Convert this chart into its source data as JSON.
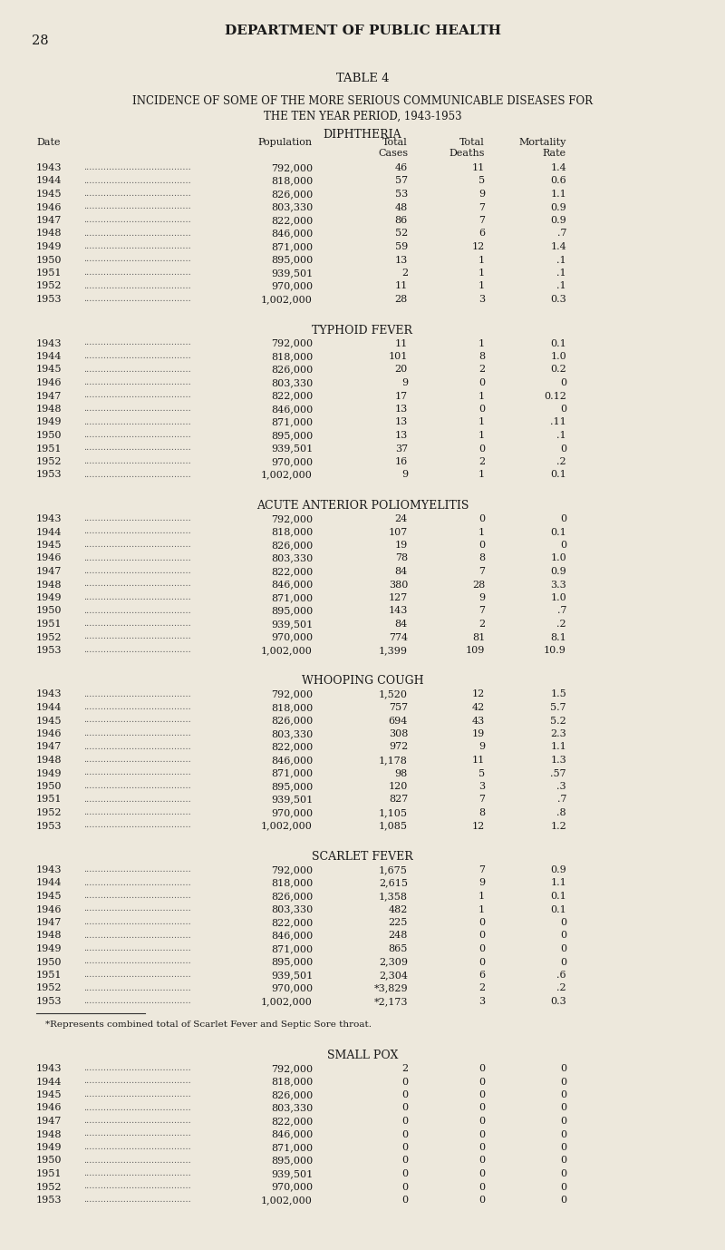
{
  "page_num": "28",
  "page_header": "DEPARTMENT OF PUBLIC HEALTH",
  "table_title": "TABLE 4",
  "table_subtitle_1": "INCIDENCE OF SOME OF THE MORE SERIOUS COMMUNICABLE DISEASES FOR",
  "table_subtitle_2": "THE TEN YEAR PERIOD, 1943-1953",
  "background_color": "#ede8dc",
  "text_color": "#1a1a1a",
  "sections": [
    {
      "title": "DIPHTHERIA",
      "has_col_headers": true,
      "rows": [
        [
          "1943",
          "792,000",
          "46",
          "11",
          "1.4"
        ],
        [
          "1944",
          "818,000",
          "57",
          "5",
          "0.6"
        ],
        [
          "1945",
          "826,000",
          "53",
          "9",
          "1.1"
        ],
        [
          "1946",
          "803,330",
          "48",
          "7",
          "0.9"
        ],
        [
          "1947",
          "822,000",
          "86",
          "7",
          "0.9"
        ],
        [
          "1948",
          "846,000",
          "52",
          "6",
          ".7"
        ],
        [
          "1949",
          "871,000",
          "59",
          "12",
          "1.4"
        ],
        [
          "1950",
          "895,000",
          "13",
          "1",
          ".1"
        ],
        [
          "1951",
          "939,501",
          "2",
          "1",
          ".1"
        ],
        [
          "1952",
          "970,000",
          "11",
          "1",
          ".1"
        ],
        [
          "1953",
          "1,002,000",
          "28",
          "3",
          "0.3"
        ]
      ],
      "footnote": null
    },
    {
      "title": "TYPHOID FEVER",
      "has_col_headers": false,
      "rows": [
        [
          "1943",
          "792,000",
          "11",
          "1",
          "0.1"
        ],
        [
          "1944",
          "818,000",
          "101",
          "8",
          "1.0"
        ],
        [
          "1945",
          "826,000",
          "20",
          "2",
          "0.2"
        ],
        [
          "1946",
          "803,330",
          "9",
          "0",
          "0"
        ],
        [
          "1947",
          "822,000",
          "17",
          "1",
          "0.12"
        ],
        [
          "1948",
          "846,000",
          "13",
          "0",
          "0"
        ],
        [
          "1949",
          "871,000",
          "13",
          "1",
          ".11"
        ],
        [
          "1950",
          "895,000",
          "13",
          "1",
          ".1"
        ],
        [
          "1951",
          "939,501",
          "37",
          "0",
          "0"
        ],
        [
          "1952",
          "970,000",
          "16",
          "2",
          ".2"
        ],
        [
          "1953",
          "1,002,000",
          "9",
          "1",
          "0.1"
        ]
      ],
      "footnote": null
    },
    {
      "title": "ACUTE ANTERIOR POLIOMYELITIS",
      "has_col_headers": false,
      "rows": [
        [
          "1943",
          "792,000",
          "24",
          "0",
          "0"
        ],
        [
          "1944",
          "818,000",
          "107",
          "1",
          "0.1"
        ],
        [
          "1945",
          "826,000",
          "19",
          "0",
          "0"
        ],
        [
          "1946",
          "803,330",
          "78",
          "8",
          "1.0"
        ],
        [
          "1947",
          "822,000",
          "84",
          "7",
          "0.9"
        ],
        [
          "1948",
          "846,000",
          "380",
          "28",
          "3.3"
        ],
        [
          "1949",
          "871,000",
          "127",
          "9",
          "1.0"
        ],
        [
          "1950",
          "895,000",
          "143",
          "7",
          ".7"
        ],
        [
          "1951",
          "939,501",
          "84",
          "2",
          ".2"
        ],
        [
          "1952",
          "970,000",
          "774",
          "81",
          "8.1"
        ],
        [
          "1953",
          "1,002,000",
          "1,399",
          "109",
          "10.9"
        ]
      ],
      "footnote": null
    },
    {
      "title": "WHOOPING COUGH",
      "has_col_headers": false,
      "rows": [
        [
          "1943",
          "792,000",
          "1,520",
          "12",
          "1.5"
        ],
        [
          "1944",
          "818,000",
          "757",
          "42",
          "5.7"
        ],
        [
          "1945",
          "826,000",
          "694",
          "43",
          "5.2"
        ],
        [
          "1946",
          "803,330",
          "308",
          "19",
          "2.3"
        ],
        [
          "1947",
          "822,000",
          "972",
          "9",
          "1.1"
        ],
        [
          "1948",
          "846,000",
          "1,178",
          "11",
          "1.3"
        ],
        [
          "1949",
          "871,000",
          "98",
          "5",
          ".57"
        ],
        [
          "1950",
          "895,000",
          "120",
          "3",
          ".3"
        ],
        [
          "1951",
          "939,501",
          "827",
          "7",
          ".7"
        ],
        [
          "1952",
          "970,000",
          "1,105",
          "8",
          ".8"
        ],
        [
          "1953",
          "1,002,000",
          "1,085",
          "12",
          "1.2"
        ]
      ],
      "footnote": null
    },
    {
      "title": "SCARLET FEVER",
      "has_col_headers": false,
      "rows": [
        [
          "1943",
          "792,000",
          "1,675",
          "7",
          "0.9"
        ],
        [
          "1944",
          "818,000",
          "2,615",
          "9",
          "1.1"
        ],
        [
          "1945",
          "826,000",
          "1,358",
          "1",
          "0.1"
        ],
        [
          "1946",
          "803,330",
          "482",
          "1",
          "0.1"
        ],
        [
          "1947",
          "822,000",
          "225",
          "0",
          "0"
        ],
        [
          "1948",
          "846,000",
          "248",
          "0",
          "0"
        ],
        [
          "1949",
          "871,000",
          "865",
          "0",
          "0"
        ],
        [
          "1950",
          "895,000",
          "2,309",
          "0",
          "0"
        ],
        [
          "1951",
          "939,501",
          "2,304",
          "6",
          ".6"
        ],
        [
          "1952",
          "970,000",
          "*3,829",
          "2",
          ".2"
        ],
        [
          "1953",
          "1,002,000",
          "*2,173",
          "3",
          "0.3"
        ]
      ],
      "footnote": "*Represents combined total of Scarlet Fever and Septic Sore throat."
    },
    {
      "title": "SMALL POX",
      "has_col_headers": false,
      "rows": [
        [
          "1943",
          "792,000",
          "2",
          "0",
          "0"
        ],
        [
          "1944",
          "818,000",
          "0",
          "0",
          "0"
        ],
        [
          "1945",
          "826,000",
          "0",
          "0",
          "0"
        ],
        [
          "1946",
          "803,330",
          "0",
          "0",
          "0"
        ],
        [
          "1947",
          "822,000",
          "0",
          "0",
          "0"
        ],
        [
          "1948",
          "846,000",
          "0",
          "0",
          "0"
        ],
        [
          "1949",
          "871,000",
          "0",
          "0",
          "0"
        ],
        [
          "1950",
          "895,000",
          "0",
          "0",
          "0"
        ],
        [
          "1951",
          "939,501",
          "0",
          "0",
          "0"
        ],
        [
          "1952",
          "970,000",
          "0",
          "0",
          "0"
        ],
        [
          "1953",
          "1,002,000",
          "0",
          "0",
          "0"
        ]
      ],
      "footnote": null
    }
  ]
}
